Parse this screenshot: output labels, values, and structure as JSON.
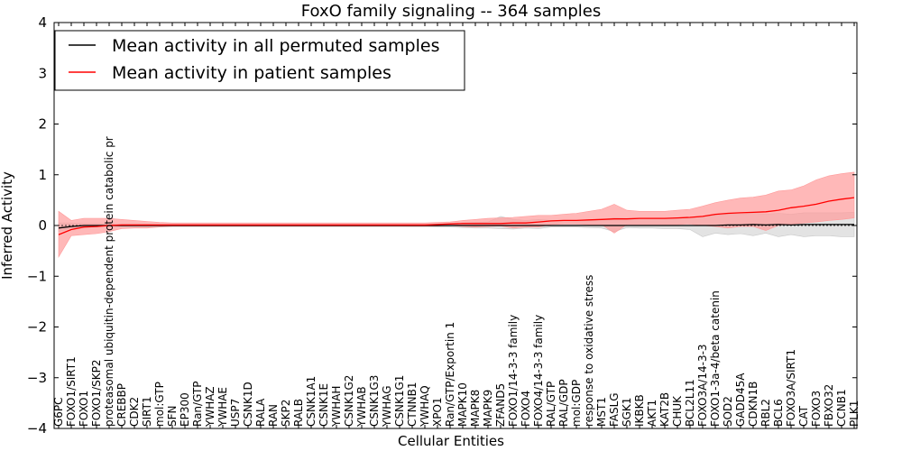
{
  "chart_data": {
    "type": "line",
    "title": "FoxO family signaling -- 364 samples",
    "xlabel": "Cellular Entities",
    "ylabel": "Inferred Activity",
    "ylim": [
      -4,
      4
    ],
    "yticks": [
      -4,
      -3,
      -2,
      -1,
      0,
      1,
      2,
      3,
      4
    ],
    "ytick_labels": [
      "−4",
      "−3",
      "−2",
      "−1",
      "0",
      "1",
      "2",
      "3",
      "4"
    ],
    "legend_position": "top-left",
    "categories": [
      "G6PC",
      "FOXO1/SIRT1",
      "FOXO1",
      "FOXO1/SKP2",
      "proteasomal ubiquitin-dependent protein catabolic process",
      "CREBBP",
      "CDK2",
      "SIRT1",
      "mol:GTP",
      "SFN",
      "EP300",
      "Ran/GTP",
      "YWHAZ",
      "YWHAE",
      "USP7",
      "CSNK1D",
      "RALA",
      "RAN",
      "SKP2",
      "RALB",
      "CSNK1A1",
      "CSNK1E",
      "YWHAH",
      "CSNK1G2",
      "YWHAB",
      "CSNK1G3",
      "YWHAG",
      "CSNK1G1",
      "CTNNB1",
      "YWHAQ",
      "XPO1",
      "Ran/GTP/Exportin 1",
      "MAPK10",
      "MAPK8",
      "MAPK9",
      "ZFAND5",
      "FOXO1/14-3-3 family",
      "FOXO4",
      "FOXO4/14-3-3 family",
      "RAL/GTP",
      "RAL/GDP",
      "mol:GDP",
      "response to oxidative stress",
      "MST1",
      "FASLG",
      "SGK1",
      "IKBKB",
      "AKT1",
      "KAT2B",
      "CHUK",
      "BCL2L11",
      "FOXO3A/14-3-3",
      "FOXO1-3a-4/beta catenin",
      "SOD2",
      "GADD45A",
      "CDKN1B",
      "RBL2",
      "BCL6",
      "FOXO3A/SIRT1",
      "CAT",
      "FOXO3",
      "FBXO32",
      "CCNB1",
      "PLK1"
    ],
    "category_display": [
      "G6PC",
      "FOXO1/SIRT1",
      "FOXO1",
      "FOXO1/SKP2",
      "proteasomal ubiquitin-dependent protein catabolic pr",
      "CREBBP",
      "CDK2",
      "SIRT1",
      "mol:GTP",
      "SFN",
      "EP300",
      "Ran/GTP",
      "YWHAZ",
      "YWHAE",
      "USP7",
      "CSNK1D",
      "RALA",
      "RAN",
      "SKP2",
      "RALB",
      "CSNK1A1",
      "CSNK1E",
      "YWHAH",
      "CSNK1G2",
      "YWHAB",
      "CSNK1G3",
      "YWHAG",
      "CSNK1G1",
      "CTNNB1",
      "YWHAQ",
      "XPO1",
      "Ran/GTP/Exportin 1",
      "MAPK10",
      "MAPK8",
      "MAPK9",
      "ZFAND5",
      "FOXO1/14-3-3 family",
      "FOXO4",
      "FOXO4/14-3-3 family",
      "RAL/GTP",
      "RAL/GDP",
      "mol:GDP",
      "response to oxidative stress",
      "MST1",
      "FASLG",
      "SGK1",
      "IKBKB",
      "AKT1",
      "KAT2B",
      "CHUK",
      "BCL2L11",
      "FOXO3A/14-3-3",
      "FOXO1-3a-4/beta catenin",
      "SOD2",
      "GADD45A",
      "CDKN1B",
      "RBL2",
      "BCL6",
      "FOXO3A/SIRT1",
      "CAT",
      "FOXO3",
      "FBXO32",
      "CCNB1",
      "PLK1"
    ],
    "series": [
      {
        "name": "Mean activity in all permuted samples",
        "color": "#000000",
        "band_color": "#c8c8c8",
        "values": [
          -0.05,
          -0.02,
          0,
          0,
          0,
          0,
          0,
          0,
          0,
          0,
          0,
          0,
          0,
          0,
          0,
          0,
          0,
          0,
          0,
          0,
          0,
          0,
          0,
          0,
          0,
          0,
          0,
          0,
          0,
          0,
          0,
          0,
          0,
          0,
          0,
          0,
          0,
          0,
          0,
          0,
          0,
          0,
          0,
          0,
          0,
          0,
          0,
          0,
          0,
          0,
          0,
          0,
          0,
          0.01,
          0.01,
          0.02,
          0.01,
          0.02,
          0.01,
          0.02,
          0.02,
          0.02,
          0.02,
          0.02
        ],
        "lower": [
          -0.12,
          -0.05,
          -0.02,
          -0.02,
          -0.02,
          -0.02,
          -0.02,
          -0.02,
          -0.01,
          -0.01,
          -0.01,
          -0.01,
          -0.01,
          -0.01,
          -0.01,
          -0.01,
          -0.01,
          -0.01,
          -0.01,
          -0.01,
          -0.01,
          -0.01,
          -0.01,
          -0.01,
          -0.01,
          -0.01,
          -0.01,
          -0.01,
          -0.02,
          -0.02,
          -0.03,
          -0.03,
          -0.04,
          -0.05,
          -0.05,
          -0.06,
          -0.07,
          -0.05,
          -0.06,
          -0.03,
          -0.03,
          -0.03,
          -0.04,
          -0.05,
          -0.12,
          -0.04,
          -0.05,
          -0.05,
          -0.06,
          -0.06,
          -0.08,
          -0.22,
          -0.15,
          -0.18,
          -0.16,
          -0.2,
          -0.15,
          -0.22,
          -0.18,
          -0.22,
          -0.2,
          -0.2,
          -0.22,
          -0.22
        ],
        "upper": [
          0.05,
          0.05,
          0.04,
          0.04,
          0.04,
          0.03,
          0.03,
          0.03,
          0.02,
          0.02,
          0.02,
          0.02,
          0.02,
          0.02,
          0.02,
          0.02,
          0.02,
          0.02,
          0.02,
          0.02,
          0.02,
          0.02,
          0.02,
          0.02,
          0.02,
          0.02,
          0.02,
          0.02,
          0.02,
          0.02,
          0.03,
          0.04,
          0.05,
          0.06,
          0.07,
          0.18,
          0.12,
          0.1,
          0.12,
          0.1,
          0.1,
          0.1,
          0.1,
          0.12,
          0.15,
          0.14,
          0.14,
          0.14,
          0.14,
          0.15,
          0.16,
          0.18,
          0.2,
          0.22,
          0.22,
          0.24,
          0.22,
          0.24,
          0.22,
          0.25,
          0.25,
          0.25,
          0.25,
          0.26
        ]
      },
      {
        "name": "Mean activity in patient samples",
        "color": "#ff0000",
        "band_color": "#ff9a9a",
        "values": [
          -0.18,
          -0.08,
          -0.03,
          -0.02,
          0,
          0.01,
          0.01,
          0.01,
          0.01,
          0.01,
          0.01,
          0.01,
          0.01,
          0.01,
          0.01,
          0.01,
          0.01,
          0.01,
          0.01,
          0.01,
          0.01,
          0.01,
          0.01,
          0.01,
          0.01,
          0.01,
          0.01,
          0.01,
          0.01,
          0.01,
          0.02,
          0.03,
          0.04,
          0.04,
          0.04,
          0.04,
          0.05,
          0.05,
          0.07,
          0.09,
          0.1,
          0.1,
          0.11,
          0.12,
          0.13,
          0.13,
          0.14,
          0.14,
          0.14,
          0.15,
          0.16,
          0.18,
          0.22,
          0.24,
          0.25,
          0.26,
          0.27,
          0.3,
          0.35,
          0.38,
          0.42,
          0.48,
          0.52,
          0.55
        ],
        "lower": [
          -0.62,
          -0.2,
          -0.18,
          -0.16,
          -0.12,
          -0.06,
          -0.05,
          -0.05,
          -0.03,
          -0.02,
          -0.02,
          -0.02,
          -0.02,
          -0.02,
          -0.02,
          -0.02,
          -0.02,
          -0.02,
          -0.02,
          -0.02,
          -0.02,
          -0.02,
          -0.02,
          -0.02,
          -0.02,
          -0.02,
          -0.02,
          -0.02,
          -0.02,
          -0.02,
          -0.01,
          0,
          -0.02,
          -0.03,
          -0.02,
          -0.01,
          -0.05,
          -0.03,
          -0.03,
          0.02,
          0.03,
          0.03,
          0.02,
          0.02,
          -0.15,
          0.02,
          0.02,
          0.02,
          0.02,
          0.02,
          0.03,
          0,
          -0.02,
          -0.05,
          -0.02,
          -0.02,
          -0.1,
          0,
          0.03,
          0.05,
          0.07,
          0.1,
          0.12,
          0.15
        ],
        "upper": [
          0.28,
          0.1,
          0.14,
          0.14,
          0.14,
          0.12,
          0.1,
          0.08,
          0.06,
          0.05,
          0.05,
          0.05,
          0.05,
          0.05,
          0.05,
          0.05,
          0.05,
          0.05,
          0.05,
          0.05,
          0.05,
          0.05,
          0.05,
          0.05,
          0.05,
          0.05,
          0.05,
          0.05,
          0.05,
          0.05,
          0.06,
          0.07,
          0.1,
          0.12,
          0.14,
          0.15,
          0.16,
          0.18,
          0.2,
          0.2,
          0.22,
          0.24,
          0.28,
          0.32,
          0.42,
          0.3,
          0.28,
          0.28,
          0.28,
          0.3,
          0.32,
          0.38,
          0.45,
          0.5,
          0.54,
          0.56,
          0.6,
          0.68,
          0.7,
          0.78,
          0.9,
          0.98,
          1.02,
          1.05
        ]
      }
    ]
  }
}
